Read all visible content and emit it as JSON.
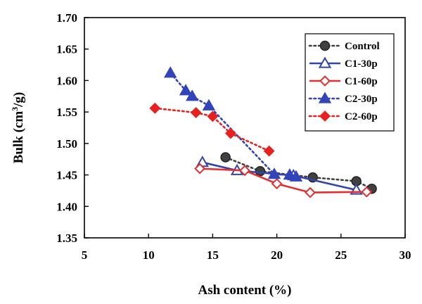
{
  "chart_data": {
    "type": "line",
    "xlabel": "Ash content (%)",
    "ylabel_main": "Bulk (cm",
    "ylabel_sup": "3",
    "ylabel_end": "/g)",
    "xlim": [
      5,
      30
    ],
    "ylim": [
      1.35,
      1.7
    ],
    "x_ticks": [
      5,
      10,
      15,
      20,
      25,
      30
    ],
    "y_ticks": [
      1.35,
      1.4,
      1.45,
      1.5,
      1.55,
      1.6,
      1.65,
      1.7
    ],
    "y_tick_labels": [
      "1.35",
      "1.40",
      "1.45",
      "1.50",
      "1.55",
      "1.60",
      "1.65",
      "1.70"
    ],
    "legend_position": "top-right",
    "series": [
      {
        "name": "Control",
        "color": "#404040",
        "line": "dotted",
        "marker": "circle",
        "filled": true,
        "x": [
          16.0,
          18.7,
          22.8,
          26.2,
          27.4
        ],
        "y": [
          1.478,
          1.456,
          1.446,
          1.44,
          1.428
        ]
      },
      {
        "name": "C1-30p",
        "color": "#3344aa",
        "line": "solid",
        "marker": "triangle",
        "filled": false,
        "x": [
          14.2,
          16.9,
          21.3,
          26.2
        ],
        "y": [
          1.47,
          1.457,
          1.449,
          1.426
        ]
      },
      {
        "name": "C1-60p",
        "color": "#e03030",
        "line": "solid",
        "marker": "diamond",
        "filled": false,
        "x": [
          14.0,
          17.5,
          20.0,
          22.6,
          27.0
        ],
        "y": [
          1.46,
          1.457,
          1.436,
          1.422,
          1.423
        ]
      },
      {
        "name": "C2-30p",
        "color": "#3344bb",
        "line": "dotted",
        "marker": "triangle",
        "filled": true,
        "x": [
          11.7,
          12.9,
          13.4,
          14.7,
          19.8,
          21.0,
          21.5
        ],
        "y": [
          1.612,
          1.584,
          1.575,
          1.56,
          1.451,
          1.45,
          1.447
        ]
      },
      {
        "name": "C2-60p",
        "color": "#e82020",
        "line": "dotted",
        "marker": "diamond",
        "filled": true,
        "x": [
          10.5,
          13.7,
          15.0,
          16.4,
          19.4
        ],
        "y": [
          1.556,
          1.549,
          1.543,
          1.516,
          1.488
        ]
      }
    ]
  }
}
